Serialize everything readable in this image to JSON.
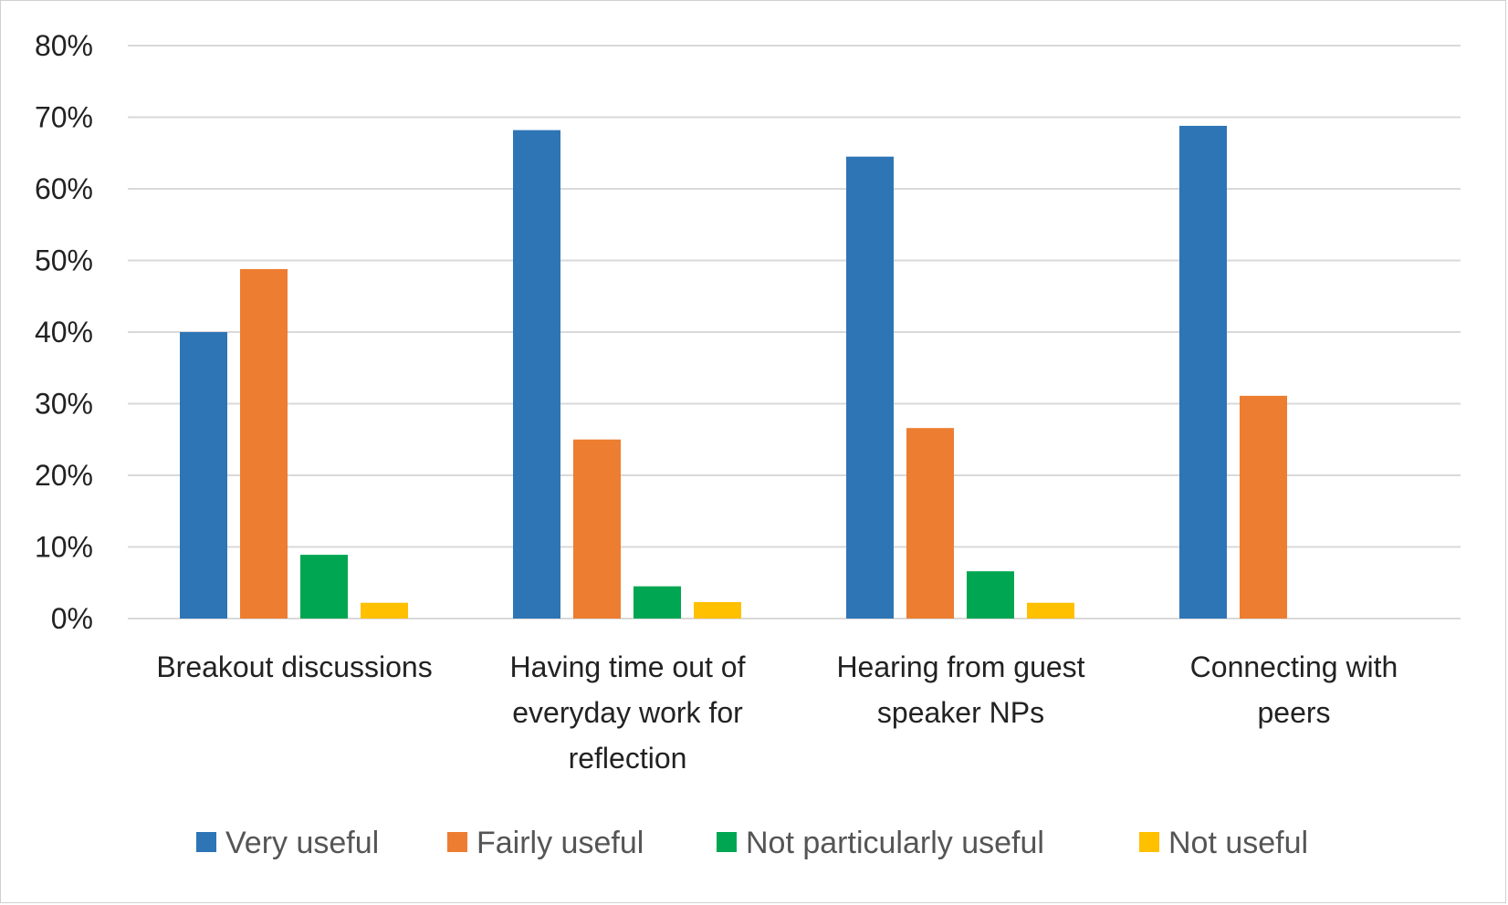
{
  "chart_data": {
    "type": "bar",
    "title": "",
    "xlabel": "",
    "ylabel": "",
    "categories": [
      [
        "Breakout discussions"
      ],
      [
        "Having time out of",
        "everyday work for",
        "reflection"
      ],
      [
        "Hearing from guest",
        "speaker NPs"
      ],
      [
        "Connecting with",
        "peers"
      ]
    ],
    "series": [
      {
        "name": "Very useful",
        "color": "#2E75B6",
        "values": [
          40,
          68.2,
          64.5,
          68.8
        ]
      },
      {
        "name": "Fairly useful",
        "color": "#ED7D31",
        "values": [
          48.8,
          25,
          26.6,
          31.1
        ]
      },
      {
        "name": "Not particularly useful",
        "color": "#00A651",
        "values": [
          8.9,
          4.5,
          6.6,
          0
        ]
      },
      {
        "name": "Not useful",
        "color": "#FFC000",
        "values": [
          2.2,
          2.3,
          2.2,
          0
        ]
      }
    ],
    "ylim": [
      0,
      80
    ],
    "yticks": [
      0,
      10,
      20,
      30,
      40,
      50,
      60,
      70,
      80
    ],
    "ytick_labels": [
      "0%",
      "10%",
      "20%",
      "30%",
      "40%",
      "50%",
      "60%",
      "70%",
      "80%"
    ],
    "grid": true,
    "legend_position": "bottom"
  }
}
